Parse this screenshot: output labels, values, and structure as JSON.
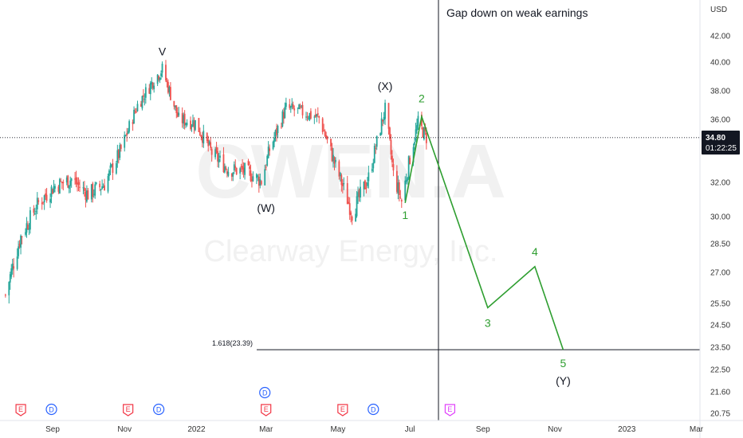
{
  "chart_data": {
    "type": "candlestick",
    "currency": "USD",
    "watermark_symbol": "CWEN.A",
    "watermark_name": "Clearway Energy, Inc.",
    "price_ticks": [
      "42.00",
      "40.00",
      "38.00",
      "36.00",
      "34.00",
      "32.00",
      "30.00",
      "28.50",
      "27.00",
      "25.50",
      "24.50",
      "23.50",
      "22.50",
      "21.60",
      "20.75"
    ],
    "date_ticks": [
      "Sep",
      "Nov",
      "2022",
      "Mar",
      "May",
      "Jul",
      "Sep",
      "Nov",
      "2023",
      "Mar"
    ],
    "last_price": "34.80",
    "countdown": "01:22:25",
    "annotation": "Gap down on weak earnings",
    "fib_label": "1.618(23.39)",
    "fib_level": 23.39,
    "colors": {
      "up": "#26a69a",
      "down": "#ef5350",
      "wave_green": "#2e9e30",
      "line": "#131722",
      "event_earnings": "#f23645",
      "event_dividend": "#2962ff",
      "event_future": "#e040fb"
    },
    "ohlc_approx": [
      {
        "date": "2021-07-23",
        "close": 25.9
      },
      {
        "date": "2021-08-05",
        "close": 28.9
      },
      {
        "date": "2021-08-20",
        "close": 30.8
      },
      {
        "date": "2021-09-03",
        "close": 31.8
      },
      {
        "date": "2021-09-17",
        "close": 32.2
      },
      {
        "date": "2021-10-01",
        "close": 31.3
      },
      {
        "date": "2021-10-15",
        "close": 31.9
      },
      {
        "date": "2021-10-29",
        "close": 34.0
      },
      {
        "date": "2021-11-12",
        "close": 37.0
      },
      {
        "date": "2021-11-26",
        "close": 38.8
      },
      {
        "date": "2021-12-03",
        "close": 39.5
      },
      {
        "date": "2021-12-17",
        "close": 36.0
      },
      {
        "date": "2021-12-31",
        "close": 35.8
      },
      {
        "date": "2022-01-14",
        "close": 33.8
      },
      {
        "date": "2022-01-28",
        "close": 32.8
      },
      {
        "date": "2022-02-11",
        "close": 32.7
      },
      {
        "date": "2022-02-25",
        "close": 32.1
      },
      {
        "date": "2022-03-04",
        "close": 34.0
      },
      {
        "date": "2022-03-18",
        "close": 36.8
      },
      {
        "date": "2022-04-01",
        "close": 36.5
      },
      {
        "date": "2022-04-15",
        "close": 36.1
      },
      {
        "date": "2022-04-29",
        "close": 33.0
      },
      {
        "date": "2022-05-13",
        "close": 30.2
      },
      {
        "date": "2022-05-27",
        "close": 32.3
      },
      {
        "date": "2022-06-10",
        "close": 36.7
      },
      {
        "date": "2022-06-17",
        "close": 32.5
      },
      {
        "date": "2022-06-24",
        "close": 30.9
      },
      {
        "date": "2022-07-01",
        "close": 33.5
      },
      {
        "date": "2022-07-08",
        "close": 35.8
      },
      {
        "date": "2022-07-15",
        "close": 34.8
      }
    ],
    "waves": [
      {
        "label": "V",
        "date": "2021-12-03",
        "price": 39.7,
        "color": "#131722"
      },
      {
        "label": "(W)",
        "date": "2022-03-01",
        "price": 31.5,
        "color": "#131722"
      },
      {
        "label": "(X)",
        "date": "2022-06-10",
        "price": 37.5,
        "color": "#131722"
      },
      {
        "label": "1",
        "date": "2022-06-27",
        "price": 30.8,
        "color": "#2e9e30"
      },
      {
        "label": "2",
        "date": "2022-07-11",
        "price": 36.2,
        "color": "#2e9e30"
      },
      {
        "label": "3",
        "date": "2022-09-05",
        "price": 25.3,
        "color": "#2e9e30"
      },
      {
        "label": "4",
        "date": "2022-10-15",
        "price": 27.3,
        "color": "#2e9e30"
      },
      {
        "label": "5",
        "date": "2022-11-08",
        "price": 23.39,
        "color": "#2e9e30"
      },
      {
        "label": "(Y)",
        "date": "2022-11-08",
        "price": 23.39,
        "color": "#131722"
      }
    ],
    "projection_path": [
      {
        "date": "2022-06-27",
        "price": 30.8
      },
      {
        "date": "2022-07-11",
        "price": 36.2
      },
      {
        "date": "2022-09-05",
        "price": 25.3
      },
      {
        "date": "2022-10-15",
        "price": 27.3
      },
      {
        "date": "2022-11-08",
        "price": 23.39
      }
    ],
    "events": [
      {
        "type": "E",
        "date": "2021-08-05"
      },
      {
        "type": "D",
        "date": "2021-08-31"
      },
      {
        "type": "E",
        "date": "2021-11-04"
      },
      {
        "type": "D",
        "date": "2021-11-30"
      },
      {
        "type": "D",
        "date": "2022-02-28"
      },
      {
        "type": "E",
        "date": "2022-03-01"
      },
      {
        "type": "E",
        "date": "2022-05-05"
      },
      {
        "type": "D",
        "date": "2022-05-31"
      },
      {
        "type": "E",
        "date": "2022-08-04"
      }
    ]
  }
}
